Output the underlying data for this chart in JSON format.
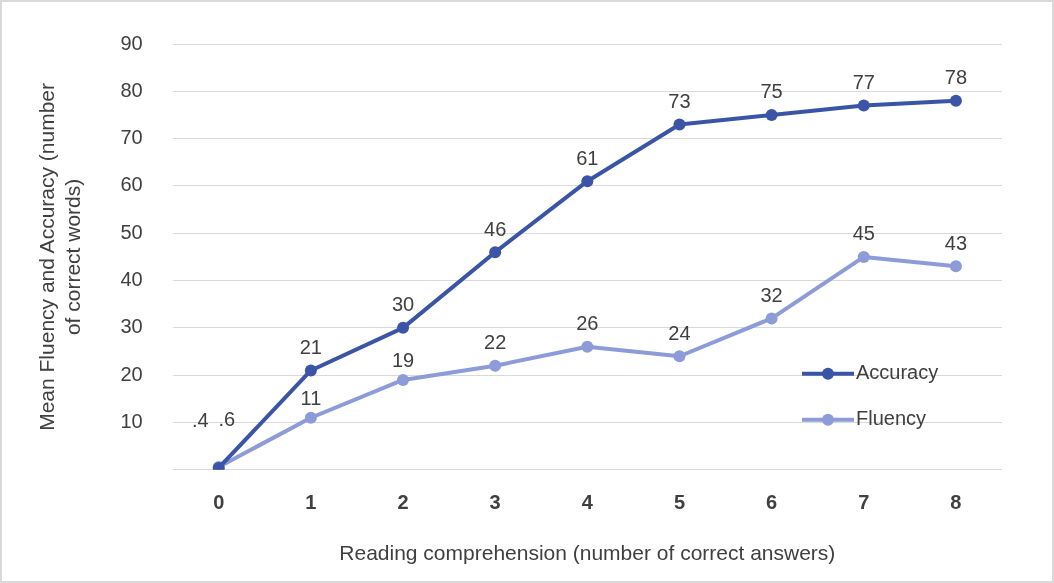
{
  "chart_data": {
    "type": "line",
    "xlabel": "Reading comprehension (number of correct answers)",
    "ylabel": "Mean Fluency and Accuracy (number of correct words)",
    "categories": [
      "0",
      "1",
      "2",
      "3",
      "4",
      "5",
      "6",
      "7",
      "8"
    ],
    "series": [
      {
        "name": "Accuracy",
        "color": "#3b55a6",
        "values": [
          0.4,
          21,
          30,
          46,
          61,
          73,
          75,
          77,
          78
        ],
        "value_labels": [
          ".4",
          "21",
          "30",
          "46",
          "61",
          "73",
          "75",
          "77",
          "78"
        ]
      },
      {
        "name": "Fluency",
        "color": "#8d9bd9",
        "values": [
          0.6,
          11,
          19,
          22,
          26,
          24,
          32,
          45,
          43
        ],
        "value_labels": [
          ".6",
          "11",
          "19",
          "22",
          "26",
          "24",
          "32",
          "45",
          "43"
        ]
      }
    ],
    "ylim": [
      0,
      90
    ],
    "yticks": [
      {
        "value": 0,
        "label": null
      },
      10,
      20,
      30,
      40,
      50,
      60,
      70,
      80,
      90
    ],
    "grid": "y",
    "legend": "bottom right",
    "marker": "circle",
    "line_style": "solid"
  }
}
